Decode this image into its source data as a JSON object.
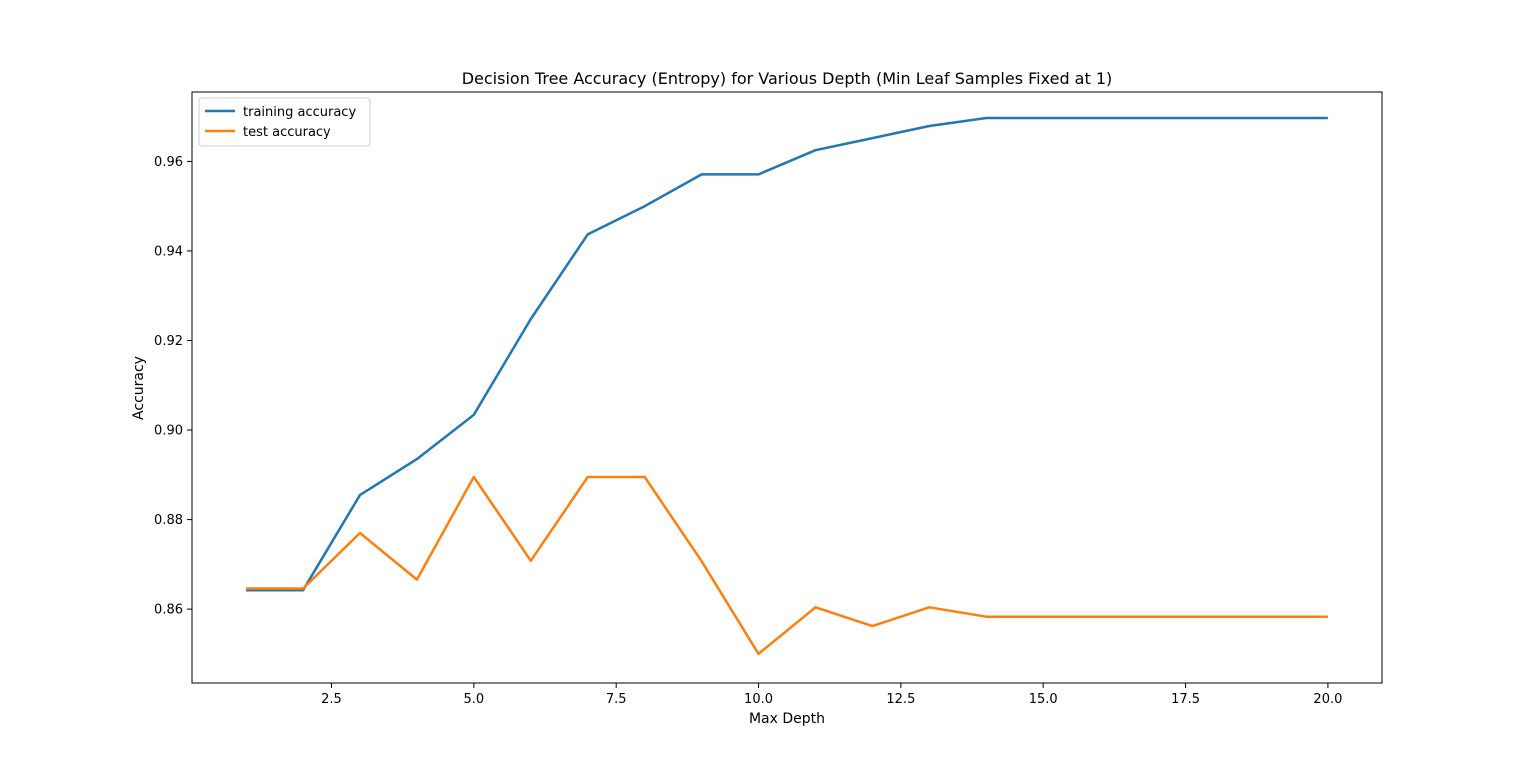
{
  "chart_data": {
    "type": "line",
    "title": "Decision Tree Accuracy (Entropy) for Various Depth (Min Leaf Samples Fixed at 1)",
    "xlabel": "Max Depth",
    "ylabel": "Accuracy",
    "x": [
      1,
      2,
      3,
      4,
      5,
      6,
      7,
      8,
      9,
      10,
      11,
      12,
      13,
      14,
      15,
      16,
      17,
      18,
      19,
      20
    ],
    "xlim": [
      0.05,
      20.95
    ],
    "ylim": [
      0.8435,
      0.9755
    ],
    "xticks": [
      2.5,
      5.0,
      7.5,
      10.0,
      12.5,
      15.0,
      17.5,
      20.0
    ],
    "xtick_labels": [
      "2.5",
      "5.0",
      "7.5",
      "10.0",
      "12.5",
      "15.0",
      "17.5",
      "20.0"
    ],
    "yticks": [
      0.86,
      0.88,
      0.9,
      0.92,
      0.94,
      0.96
    ],
    "ytick_labels": [
      "0.86",
      "0.88",
      "0.90",
      "0.92",
      "0.94",
      "0.96"
    ],
    "grid": false,
    "legend_position": "top-left",
    "series": [
      {
        "name": "training accuracy",
        "color": "#1f77b4",
        "values": [
          0.8642,
          0.8642,
          0.8855,
          0.8935,
          0.9034,
          0.9248,
          0.9437,
          0.95,
          0.9571,
          0.9571,
          0.9625,
          0.9652,
          0.9679,
          0.9697,
          0.9697,
          0.9697,
          0.9697,
          0.9697,
          0.9697,
          0.9697
        ]
      },
      {
        "name": "test accuracy",
        "color": "#ff7f0e",
        "values": [
          0.8646,
          0.8646,
          0.877,
          0.8666,
          0.8895,
          0.8708,
          0.8895,
          0.8895,
          0.8707,
          0.85,
          0.8604,
          0.8562,
          0.8604,
          0.8583,
          0.8583,
          0.8583,
          0.8583,
          0.8583,
          0.8583,
          0.8583
        ]
      }
    ]
  }
}
